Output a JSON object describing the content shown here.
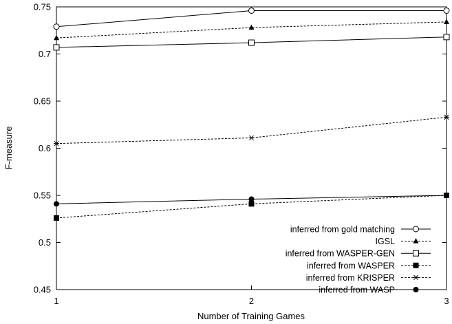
{
  "chart_data": {
    "type": "line",
    "xlabel": "Number of Training Games",
    "ylabel": "F-measure",
    "xlim": [
      1,
      3
    ],
    "ylim": [
      0.45,
      0.75
    ],
    "x_ticks": [
      "1",
      "2",
      "3"
    ],
    "y_ticks": [
      "0.45",
      "0.5",
      "0.55",
      "0.6",
      "0.65",
      "0.7",
      "0.75"
    ],
    "grid": false,
    "legend_position": "bottom-right",
    "x": [
      1,
      2,
      3
    ],
    "series": [
      {
        "name": "inferred from gold matching",
        "values": [
          0.729,
          0.746,
          0.746
        ],
        "marker": "open-circle",
        "dash": "solid",
        "color": "#000000"
      },
      {
        "name": "IGSL",
        "values": [
          0.717,
          0.728,
          0.734
        ],
        "marker": "filled-triangle",
        "dash": "dashed",
        "color": "#000000"
      },
      {
        "name": "inferred from WASPER-GEN",
        "values": [
          0.707,
          0.712,
          0.718
        ],
        "marker": "open-square",
        "dash": "solid",
        "color": "#000000"
      },
      {
        "name": "inferred from WASPER",
        "values": [
          0.526,
          0.541,
          0.55
        ],
        "marker": "filled-square",
        "dash": "dashed",
        "color": "#000000"
      },
      {
        "name": "inferred from KRISPER",
        "values": [
          0.605,
          0.611,
          0.633
        ],
        "marker": "asterisk",
        "dash": "dashed",
        "color": "#000000"
      },
      {
        "name": "inferred from WASP",
        "values": [
          0.541,
          0.546,
          0.55
        ],
        "marker": "filled-circle",
        "dash": "solid",
        "color": "#000000"
      }
    ]
  }
}
